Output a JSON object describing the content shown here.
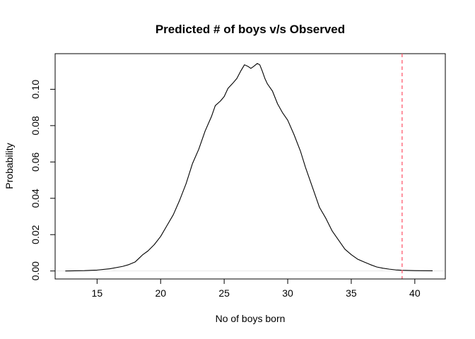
{
  "chart_data": {
    "type": "line",
    "title": "Predicted # of boys v/s Observed",
    "xlabel": "No of boys born",
    "ylabel": "Probability",
    "xlim": [
      11.7,
      42.4
    ],
    "ylim": [
      -0.0044,
      0.1196
    ],
    "x_ticks": [
      15,
      20,
      25,
      30,
      35,
      40
    ],
    "x_tick_labels": [
      "15",
      "20",
      "25",
      "30",
      "35",
      "40"
    ],
    "y_ticks": [
      0.0,
      0.02,
      0.04,
      0.06,
      0.08,
      0.1
    ],
    "y_tick_labels": [
      "0.00",
      "0.02",
      "0.04",
      "0.06",
      "0.08",
      "0.10"
    ],
    "grid": false,
    "legend": "none",
    "series": [
      {
        "color": "#000000",
        "x": [
          12.5,
          14.0,
          15.0,
          16.0,
          17.0,
          17.5,
          18.0,
          18.3,
          18.6,
          19.0,
          19.5,
          20.0,
          20.5,
          21.0,
          21.5,
          22.0,
          22.5,
          23.0,
          23.5,
          24.0,
          24.3,
          24.7,
          25.0,
          25.3,
          25.7,
          26.0,
          26.3,
          26.6,
          26.9,
          27.1,
          27.3,
          27.6,
          27.8,
          28.0,
          28.2,
          28.4,
          28.8,
          29.2,
          29.6,
          30.0,
          30.5,
          31.0,
          31.4,
          32.0,
          32.5,
          33.0,
          33.5,
          34.0,
          34.5,
          35.0,
          35.5,
          36.0,
          36.5,
          37.0,
          37.5,
          38.0,
          38.5,
          39.0,
          40.0,
          41.4
        ],
        "y": [
          0.0,
          0.0002,
          0.0005,
          0.0012,
          0.0025,
          0.0035,
          0.005,
          0.007,
          0.009,
          0.011,
          0.0145,
          0.019,
          0.025,
          0.031,
          0.039,
          0.048,
          0.059,
          0.067,
          0.077,
          0.085,
          0.091,
          0.0935,
          0.096,
          0.1005,
          0.1035,
          0.106,
          0.11,
          0.1135,
          0.1125,
          0.1115,
          0.1125,
          0.1142,
          0.1135,
          0.11,
          0.106,
          0.103,
          0.099,
          0.092,
          0.087,
          0.083,
          0.075,
          0.066,
          0.057,
          0.045,
          0.035,
          0.029,
          0.022,
          0.017,
          0.012,
          0.009,
          0.0065,
          0.005,
          0.0035,
          0.0022,
          0.0015,
          0.001,
          0.0006,
          0.0004,
          0.0002,
          0.0001
        ]
      }
    ],
    "reference_line": {
      "x": 39,
      "color": "#ff5a6e",
      "style": "dashed"
    }
  }
}
